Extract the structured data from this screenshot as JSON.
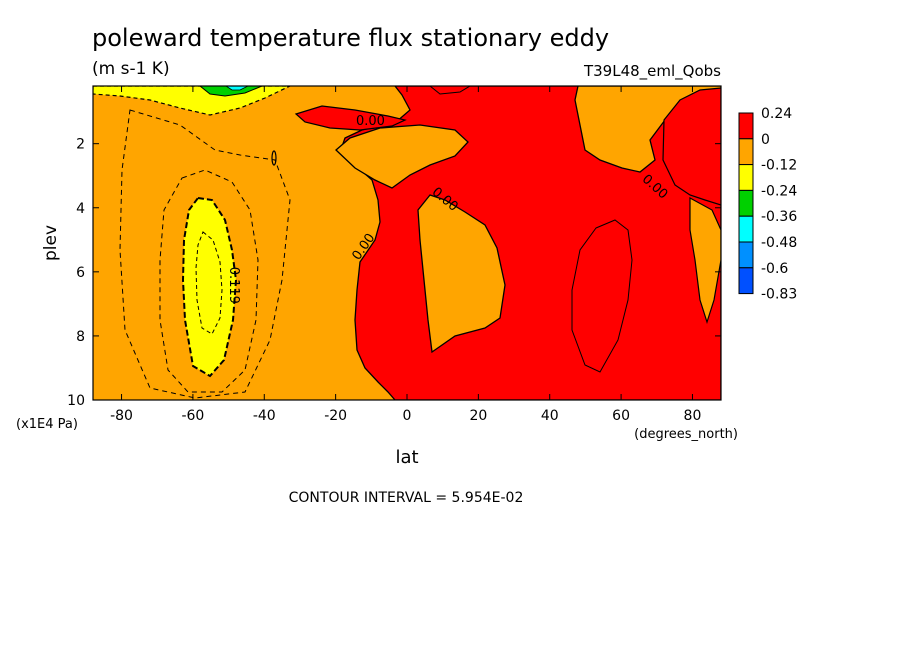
{
  "chart_data": {
    "type": "heatmap",
    "title": "poleward temperature flux stationary eddy",
    "units": "(m s-1 K)",
    "run_label": "T39L48_eml_Qobs",
    "xlabel": "lat",
    "xunits": "(degrees_north)",
    "ylabel": "plev",
    "yunits": "(x1E4 Pa)",
    "xlim": [
      -88,
      88
    ],
    "ylim": [
      10,
      0.2
    ],
    "x_ticks": [
      -80,
      -60,
      -40,
      -20,
      0,
      20,
      40,
      60,
      80
    ],
    "y_ticks": [
      2,
      4,
      6,
      8,
      10
    ],
    "contour_interval_text": "CONTOUR INTERVAL = 5.954E-02",
    "contour_labels": [
      "0.00",
      "0.00",
      "0.00",
      "0.00",
      "-0.119"
    ],
    "colorbar": {
      "labels": [
        "0.24",
        "0",
        "-0.12",
        "-0.24",
        "-0.36",
        "-0.48",
        "-0.6",
        "-0.83"
      ],
      "colors": [
        "#ff0000",
        "#ffa500",
        "#ffff00",
        "#00d000",
        "#00ffff",
        "#0090ff",
        "#0050ff"
      ]
    },
    "regions": [
      {
        "level": "0 to 0.24",
        "color": "#ff0000",
        "description": "positive flux, tropics and northern hemisphere"
      },
      {
        "level": "-0.12 to 0",
        "color": "#ffa500",
        "description": "weak negative flux, southern hemisphere and patches"
      },
      {
        "level": "-0.24 to -0.12",
        "color": "#ffff00",
        "description": "minimum near -57 lat, 5-9 plev; thin band at top near -70"
      },
      {
        "level": "-0.36 to -0.24",
        "color": "#00d000",
        "description": "small patch at top near -70 lat"
      }
    ]
  }
}
